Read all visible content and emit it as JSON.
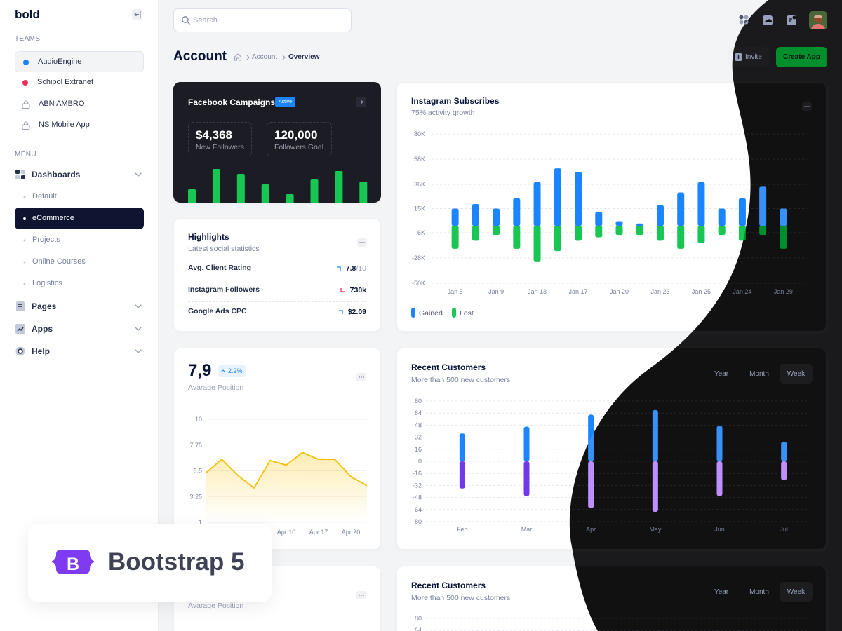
{
  "sidebar": {
    "logo": "bold",
    "teams_label": "TEAMS",
    "teams": [
      "AudioEngine",
      "Schipol Extranet",
      "ABN AMBRO",
      "NS Mobile App"
    ],
    "menu_label": "MENU",
    "menu": [
      {
        "label": "Dashboards",
        "items": [
          "Default",
          "eCommerce",
          "Projects",
          "Online Courses",
          "Logistics"
        ]
      },
      {
        "label": "Pages"
      },
      {
        "label": "Apps"
      },
      {
        "label": "Help"
      }
    ]
  },
  "header": {
    "search_placeholder": "Search",
    "title": "Account",
    "breadcrumb": [
      "Account",
      "Overview"
    ],
    "buttons": [
      "Invite",
      "Create App"
    ]
  },
  "facebook_card": {
    "title": "Facebook Campaigns",
    "badge": "Active",
    "stats": [
      {
        "value": "$4,368",
        "label": "New Followers"
      },
      {
        "value": "120,000",
        "label": "Followers Goal"
      }
    ],
    "chart_data": {
      "type": "bar",
      "values": [
        19,
        48,
        41,
        26,
        12,
        33,
        45,
        30
      ],
      "color": "#17c653"
    }
  },
  "highlights": {
    "title": "Highlights",
    "subtitle": "Latest social statistics",
    "rows": [
      {
        "label": "Avg. Client Rating",
        "value": "7.8",
        "suffix": "/10"
      },
      {
        "label": "Instagram Followers",
        "value": "730k"
      },
      {
        "label": "Google Ads CPC",
        "value": "$2.09"
      }
    ]
  },
  "instagram": {
    "title": "Instagram Subscribes",
    "subtitle": "75% activity growth",
    "chart_data": {
      "type": "bar",
      "categories": [
        "Jan 5",
        null,
        "Jan 9",
        null,
        "Jan 13",
        null,
        "Jan 17",
        null,
        "Jan 20",
        null,
        "Jan 23",
        null,
        "Jan 25",
        null,
        "Jan 24",
        null,
        "Jan 29"
      ],
      "series": [
        {
          "name": "Gained",
          "color": "#1b84ff",
          "values": [
            15000,
            19000,
            15000,
            24000,
            38000,
            50000,
            47000,
            12000,
            4000,
            2000,
            18000,
            29000,
            38000,
            15000,
            24000,
            34000,
            15000
          ]
        },
        {
          "name": "Lost",
          "color": "#17c653",
          "values": [
            -20000,
            -13000,
            -8000,
            -20000,
            -31000,
            -22000,
            -13000,
            -10000,
            -8000,
            -8000,
            -13000,
            -20000,
            -15000,
            -8000,
            -13000,
            -8000,
            -20000
          ]
        }
      ],
      "ylim": [
        -50000,
        80000
      ],
      "yticks": [
        {
          "value": 80000,
          "label": "80K"
        },
        {
          "value": 58000,
          "label": "58K"
        },
        {
          "value": 36000,
          "label": "36K"
        },
        {
          "value": 15000,
          "label": "15K"
        },
        {
          "value": -6000,
          "label": "-6K"
        },
        {
          "value": -28000,
          "label": "-28K"
        },
        {
          "value": -50000,
          "label": "-50K"
        }
      ],
      "grid": true
    }
  },
  "avg_position": {
    "value": "7,9",
    "badge": "2.2%",
    "label": "Avarage Position",
    "chart_data": {
      "type": "line",
      "categories": [
        null,
        null,
        null,
        null,
        null,
        "Apr 10",
        null,
        "Apr 17",
        null,
        "Apr 20",
        null
      ],
      "values": [
        5.3,
        6.5,
        5.1,
        4,
        6.4,
        6,
        7.1,
        6.5,
        6.5,
        5,
        4.2
      ],
      "color": "#f6c000",
      "ylim": [
        1,
        10
      ],
      "yticks": [
        10,
        7.75,
        5.5,
        3.25,
        1
      ],
      "grid": true
    }
  },
  "recent_customers": {
    "title": "Recent Customers",
    "subtitle": "More than 500 new customers",
    "periods": [
      "Year",
      "Month",
      "Week"
    ],
    "chart_data": {
      "type": "bar",
      "categories": [
        "Feb",
        "Mar",
        "Apr",
        "May",
        "Jun",
        "Jul"
      ],
      "series": [
        {
          "color": "#1b84ff",
          "values": [
            37,
            46,
            62,
            68,
            47,
            26
          ]
        },
        {
          "color": "#7239ea",
          "values": [
            -36,
            -46,
            -62,
            -67,
            -46,
            -25
          ]
        }
      ],
      "ylim": [
        -80,
        80
      ],
      "yticks": [
        80,
        64,
        48,
        32,
        16,
        0,
        -16,
        -32,
        -48,
        -64,
        -80
      ],
      "grid": true
    }
  },
  "avg_position_2": {
    "label": "Avarage Position"
  },
  "recent_customers_2": {
    "title": "Recent Customers",
    "subtitle": "More than 500 new customers",
    "periods": [
      "Year",
      "Month",
      "Week"
    ],
    "yticks": [
      80,
      64
    ]
  },
  "promo": {
    "logo": "B",
    "text": "Bootstrap 5"
  }
}
